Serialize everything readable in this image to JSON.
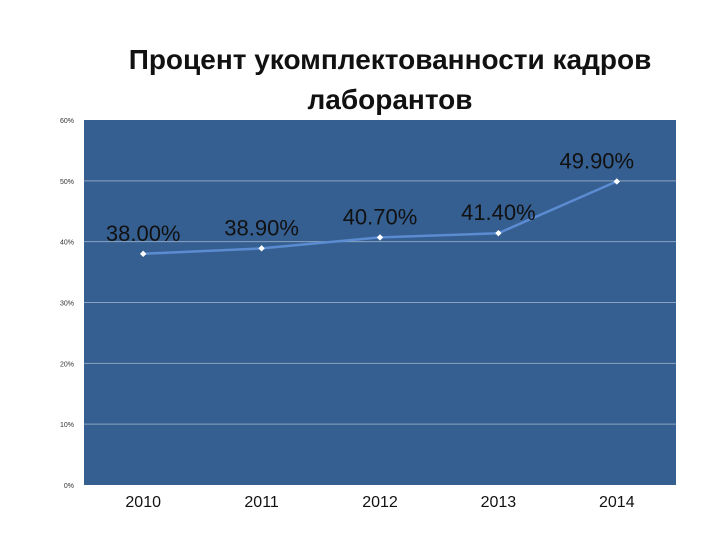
{
  "chart_data": {
    "type": "line",
    "title_lines": [
      "Процент укомплектованности  кадров",
      "лаборантов"
    ],
    "categories": [
      "2010",
      "2011",
      "2012",
      "2013",
      "2014"
    ],
    "series": [
      {
        "values": [
          38.0,
          38.9,
          40.7,
          41.4,
          49.9
        ],
        "labels": [
          "38.00%",
          "38.90%",
          "40.70%",
          "41.40%",
          "49.90%"
        ]
      }
    ],
    "y_ticks": [
      "0%",
      "10%",
      "20%",
      "30%",
      "40%",
      "50%",
      "60%"
    ],
    "ylim": [
      0,
      60
    ],
    "grid": true,
    "legend": "none",
    "colors": {
      "plot_bg": "#355F91",
      "grid": "#8CA3C0",
      "line": "#5B8BD0",
      "marker": "#FFFFFF",
      "text": "#111111"
    }
  }
}
